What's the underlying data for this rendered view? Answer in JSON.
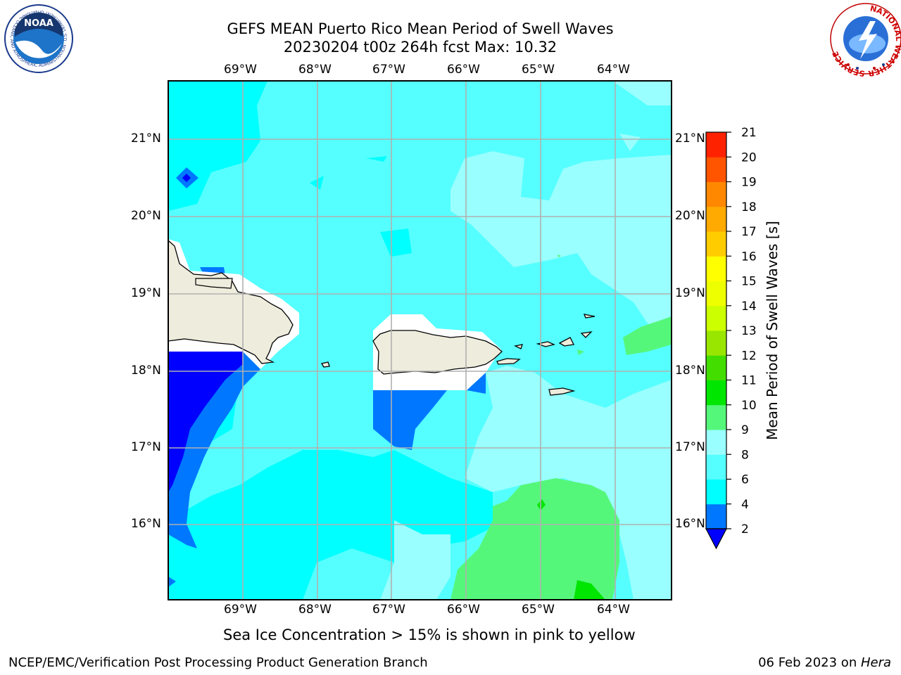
{
  "header": {
    "title_line1": "GEFS MEAN Puerto Rico Mean Period of Swell Waves",
    "title_line2": "20230204 t00z 264h fcst   Max: 10.32"
  },
  "logos": {
    "noaa_text": "NOAA",
    "noaa_ring": "NATIONAL OCEANIC AND ATMOSPHERIC ADMINISTRATION · U.S. DEPARTMENT OF COMMERCE ·",
    "nws_ring": "NATIONAL WEATHER SERVICE"
  },
  "map": {
    "lon_labels": [
      "69°W",
      "68°W",
      "67°W",
      "66°W",
      "65°W",
      "64°W"
    ],
    "lat_labels": [
      "21°N",
      "20°N",
      "19°N",
      "18°N",
      "17°N",
      "16°N"
    ],
    "extent": {
      "lon_min": -70.0,
      "lon_max": -63.25,
      "lat_min": 15.0,
      "lat_max": 21.75
    },
    "colors": {
      "land": "#eeecdc",
      "ocean_4_6": "#00ffff",
      "ocean_6_8": "#55ffff",
      "ocean_8_9": "#99ffff",
      "ocean_9_10": "#55f77a",
      "ocean_10_11": "#00e600",
      "ocean_2_4": "#0077ff",
      "ocean_lt2": "#0000ff",
      "grid": "#b0b0b0"
    }
  },
  "colorbar": {
    "label": "Mean Period of Swell Waves [s]",
    "tick_labels": [
      "2",
      "4",
      "6",
      "8",
      "9",
      "10",
      "11",
      "12",
      "13",
      "14",
      "15",
      "16",
      "17",
      "18",
      "19",
      "20",
      "21"
    ],
    "colors": [
      "#0077ff",
      "#00ffff",
      "#55ffff",
      "#99ffff",
      "#55f77a",
      "#00e600",
      "#44dd00",
      "#99e600",
      "#ccff00",
      "#eeff00",
      "#ffff00",
      "#ffcc00",
      "#ffaa00",
      "#ff8800",
      "#ff5500",
      "#ff2200",
      "#ff0000"
    ],
    "under_color": "#0000ff"
  },
  "footer": {
    "note": "Sea Ice Concentration > 15% is shown in pink to yellow",
    "branch": "NCEP/EMC/Verification Post Processing Product Generation Branch",
    "date": "06 Feb 2023 on ",
    "machine": "Hera"
  }
}
